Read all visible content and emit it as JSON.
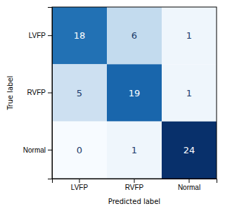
{
  "chart_data": {
    "type": "heatmap",
    "categories": [
      "LVFP",
      "RVFP",
      "Normal"
    ],
    "values": [
      [
        18,
        6,
        1
      ],
      [
        5,
        19,
        1
      ],
      [
        0,
        1,
        24
      ]
    ],
    "xlabel": "Predicted label",
    "ylabel": "True label",
    "color": "Blues",
    "color_range": [
      0,
      24
    ],
    "data_labels": true
  }
}
